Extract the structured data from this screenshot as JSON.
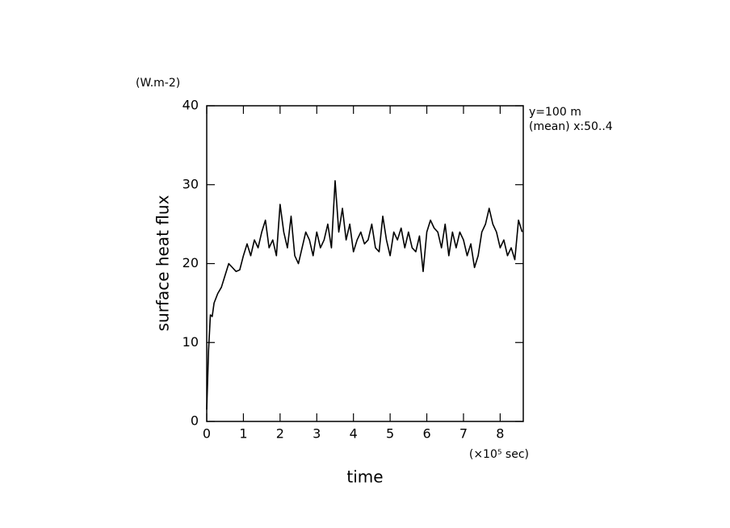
{
  "chart_data": {
    "type": "line",
    "y_unit": "(W.m-2)",
    "y_label": "surface heat flux",
    "x_label": "time",
    "x_unit": "(×10⁵ sec)",
    "annotations": [
      "y=100 m",
      "(mean) x:50..4"
    ],
    "x": [
      0,
      0.05,
      0.1,
      0.15,
      0.2,
      0.3,
      0.4,
      0.5,
      0.6,
      0.7,
      0.8,
      0.9,
      1.0,
      1.1,
      1.2,
      1.3,
      1.4,
      1.5,
      1.6,
      1.7,
      1.8,
      1.9,
      2.0,
      2.1,
      2.2,
      2.3,
      2.4,
      2.5,
      2.6,
      2.7,
      2.8,
      2.9,
      3.0,
      3.1,
      3.2,
      3.3,
      3.4,
      3.5,
      3.6,
      3.7,
      3.8,
      3.9,
      4.0,
      4.1,
      4.2,
      4.3,
      4.4,
      4.5,
      4.6,
      4.7,
      4.8,
      4.9,
      5.0,
      5.1,
      5.2,
      5.3,
      5.4,
      5.5,
      5.6,
      5.7,
      5.8,
      5.9,
      6.0,
      6.1,
      6.2,
      6.3,
      6.4,
      6.5,
      6.6,
      6.7,
      6.8,
      6.9,
      7.0,
      7.1,
      7.2,
      7.3,
      7.4,
      7.5,
      7.6,
      7.7,
      7.8,
      7.9,
      8.0,
      8.1,
      8.2,
      8.3,
      8.4,
      8.5,
      8.6
    ],
    "series": [
      {
        "name": "surface heat flux",
        "color": "#000000",
        "values": [
          1.5,
          9,
          13.5,
          13.3,
          15,
          16.2,
          17,
          18.5,
          20,
          19.5,
          19,
          19.2,
          21,
          22.5,
          21,
          23,
          22,
          24,
          25.5,
          22,
          23,
          21,
          27.5,
          24,
          22,
          26,
          21,
          20,
          22,
          24,
          23,
          21,
          24,
          22,
          23,
          25,
          22,
          30.5,
          24,
          27,
          23,
          25,
          21.5,
          23,
          24,
          22.5,
          23,
          25,
          22,
          21.5,
          26,
          23,
          21,
          24,
          23,
          24.5,
          22,
          24,
          22,
          21.5,
          23.5,
          19,
          24,
          25.5,
          24.5,
          24,
          22,
          25,
          21,
          24,
          22,
          24,
          23,
          21,
          22.5,
          19.5,
          21,
          24,
          25,
          27,
          25,
          24,
          22,
          23,
          21,
          22,
          20.5,
          25.5,
          24
        ]
      }
    ],
    "xlim": [
      0,
      8.63
    ],
    "ylim": [
      0,
      40
    ],
    "xticks": [
      0,
      1,
      2,
      3,
      4,
      5,
      6,
      7,
      8
    ],
    "yticks": [
      0,
      10,
      20,
      30,
      40
    ]
  }
}
